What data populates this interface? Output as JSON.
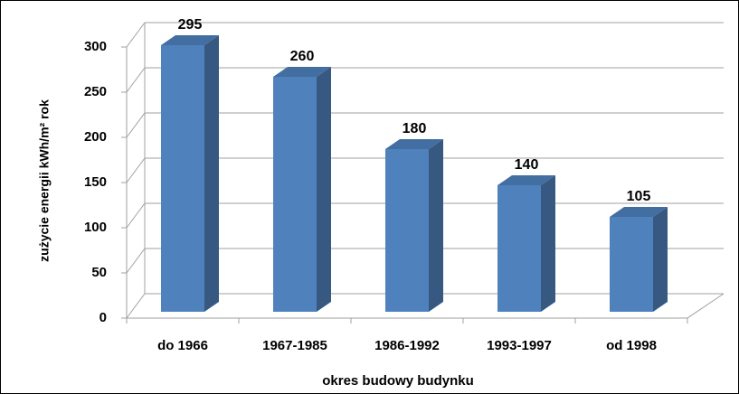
{
  "chart_data": {
    "type": "bar3d",
    "x_label": "okres budowy budynku",
    "y_label": "zużycie energii kWh/m² rok",
    "categories": [
      "do 1966",
      "1967-1985",
      "1986-1992",
      "1993-1997",
      "od 1998"
    ],
    "values": [
      295,
      260,
      180,
      140,
      105
    ],
    "color": "#4f81bd",
    "ylim": [
      0,
      300
    ],
    "yticks": [
      0,
      50,
      100,
      150,
      200,
      250,
      300
    ],
    "grid": true
  }
}
